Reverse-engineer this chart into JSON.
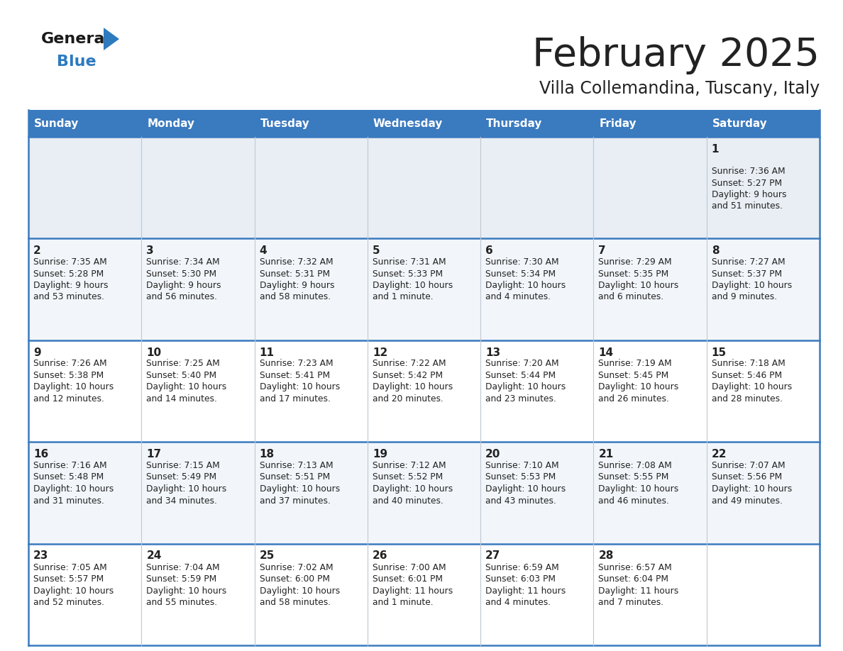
{
  "title": "February 2025",
  "subtitle": "Villa Collemandina, Tuscany, Italy",
  "header_color": "#3a7abf",
  "header_text_color": "#ffffff",
  "row1_bg": "#e8eef4",
  "row_bg_odd": "#f2f6fa",
  "row_bg_even": "#ffffff",
  "border_color": "#3a7abf",
  "cell_line_color": "#b0c4d8",
  "text_color": "#222222",
  "days_of_week": [
    "Sunday",
    "Monday",
    "Tuesday",
    "Wednesday",
    "Thursday",
    "Friday",
    "Saturday"
  ],
  "logo_general_color": "#1a1a1a",
  "logo_blue_color": "#2e7abf",
  "logo_triangle_color": "#2e7abf",
  "weeks": [
    [
      {
        "day": "",
        "sunrise": "",
        "sunset": "",
        "daylight": ""
      },
      {
        "day": "",
        "sunrise": "",
        "sunset": "",
        "daylight": ""
      },
      {
        "day": "",
        "sunrise": "",
        "sunset": "",
        "daylight": ""
      },
      {
        "day": "",
        "sunrise": "",
        "sunset": "",
        "daylight": ""
      },
      {
        "day": "",
        "sunrise": "",
        "sunset": "",
        "daylight": ""
      },
      {
        "day": "",
        "sunrise": "",
        "sunset": "",
        "daylight": ""
      },
      {
        "day": "1",
        "sunrise": "7:36 AM",
        "sunset": "5:27 PM",
        "daylight": "9 hours and 51 minutes."
      }
    ],
    [
      {
        "day": "2",
        "sunrise": "7:35 AM",
        "sunset": "5:28 PM",
        "daylight": "9 hours and 53 minutes."
      },
      {
        "day": "3",
        "sunrise": "7:34 AM",
        "sunset": "5:30 PM",
        "daylight": "9 hours and 56 minutes."
      },
      {
        "day": "4",
        "sunrise": "7:32 AM",
        "sunset": "5:31 PM",
        "daylight": "9 hours and 58 minutes."
      },
      {
        "day": "5",
        "sunrise": "7:31 AM",
        "sunset": "5:33 PM",
        "daylight": "10 hours and 1 minute."
      },
      {
        "day": "6",
        "sunrise": "7:30 AM",
        "sunset": "5:34 PM",
        "daylight": "10 hours and 4 minutes."
      },
      {
        "day": "7",
        "sunrise": "7:29 AM",
        "sunset": "5:35 PM",
        "daylight": "10 hours and 6 minutes."
      },
      {
        "day": "8",
        "sunrise": "7:27 AM",
        "sunset": "5:37 PM",
        "daylight": "10 hours and 9 minutes."
      }
    ],
    [
      {
        "day": "9",
        "sunrise": "7:26 AM",
        "sunset": "5:38 PM",
        "daylight": "10 hours and 12 minutes."
      },
      {
        "day": "10",
        "sunrise": "7:25 AM",
        "sunset": "5:40 PM",
        "daylight": "10 hours and 14 minutes."
      },
      {
        "day": "11",
        "sunrise": "7:23 AM",
        "sunset": "5:41 PM",
        "daylight": "10 hours and 17 minutes."
      },
      {
        "day": "12",
        "sunrise": "7:22 AM",
        "sunset": "5:42 PM",
        "daylight": "10 hours and 20 minutes."
      },
      {
        "day": "13",
        "sunrise": "7:20 AM",
        "sunset": "5:44 PM",
        "daylight": "10 hours and 23 minutes."
      },
      {
        "day": "14",
        "sunrise": "7:19 AM",
        "sunset": "5:45 PM",
        "daylight": "10 hours and 26 minutes."
      },
      {
        "day": "15",
        "sunrise": "7:18 AM",
        "sunset": "5:46 PM",
        "daylight": "10 hours and 28 minutes."
      }
    ],
    [
      {
        "day": "16",
        "sunrise": "7:16 AM",
        "sunset": "5:48 PM",
        "daylight": "10 hours and 31 minutes."
      },
      {
        "day": "17",
        "sunrise": "7:15 AM",
        "sunset": "5:49 PM",
        "daylight": "10 hours and 34 minutes."
      },
      {
        "day": "18",
        "sunrise": "7:13 AM",
        "sunset": "5:51 PM",
        "daylight": "10 hours and 37 minutes."
      },
      {
        "day": "19",
        "sunrise": "7:12 AM",
        "sunset": "5:52 PM",
        "daylight": "10 hours and 40 minutes."
      },
      {
        "day": "20",
        "sunrise": "7:10 AM",
        "sunset": "5:53 PM",
        "daylight": "10 hours and 43 minutes."
      },
      {
        "day": "21",
        "sunrise": "7:08 AM",
        "sunset": "5:55 PM",
        "daylight": "10 hours and 46 minutes."
      },
      {
        "day": "22",
        "sunrise": "7:07 AM",
        "sunset": "5:56 PM",
        "daylight": "10 hours and 49 minutes."
      }
    ],
    [
      {
        "day": "23",
        "sunrise": "7:05 AM",
        "sunset": "5:57 PM",
        "daylight": "10 hours and 52 minutes."
      },
      {
        "day": "24",
        "sunrise": "7:04 AM",
        "sunset": "5:59 PM",
        "daylight": "10 hours and 55 minutes."
      },
      {
        "day": "25",
        "sunrise": "7:02 AM",
        "sunset": "6:00 PM",
        "daylight": "10 hours and 58 minutes."
      },
      {
        "day": "26",
        "sunrise": "7:00 AM",
        "sunset": "6:01 PM",
        "daylight": "11 hours and 1 minute."
      },
      {
        "day": "27",
        "sunrise": "6:59 AM",
        "sunset": "6:03 PM",
        "daylight": "11 hours and 4 minutes."
      },
      {
        "day": "28",
        "sunrise": "6:57 AM",
        "sunset": "6:04 PM",
        "daylight": "11 hours and 7 minutes."
      },
      {
        "day": "",
        "sunrise": "",
        "sunset": "",
        "daylight": ""
      }
    ]
  ]
}
